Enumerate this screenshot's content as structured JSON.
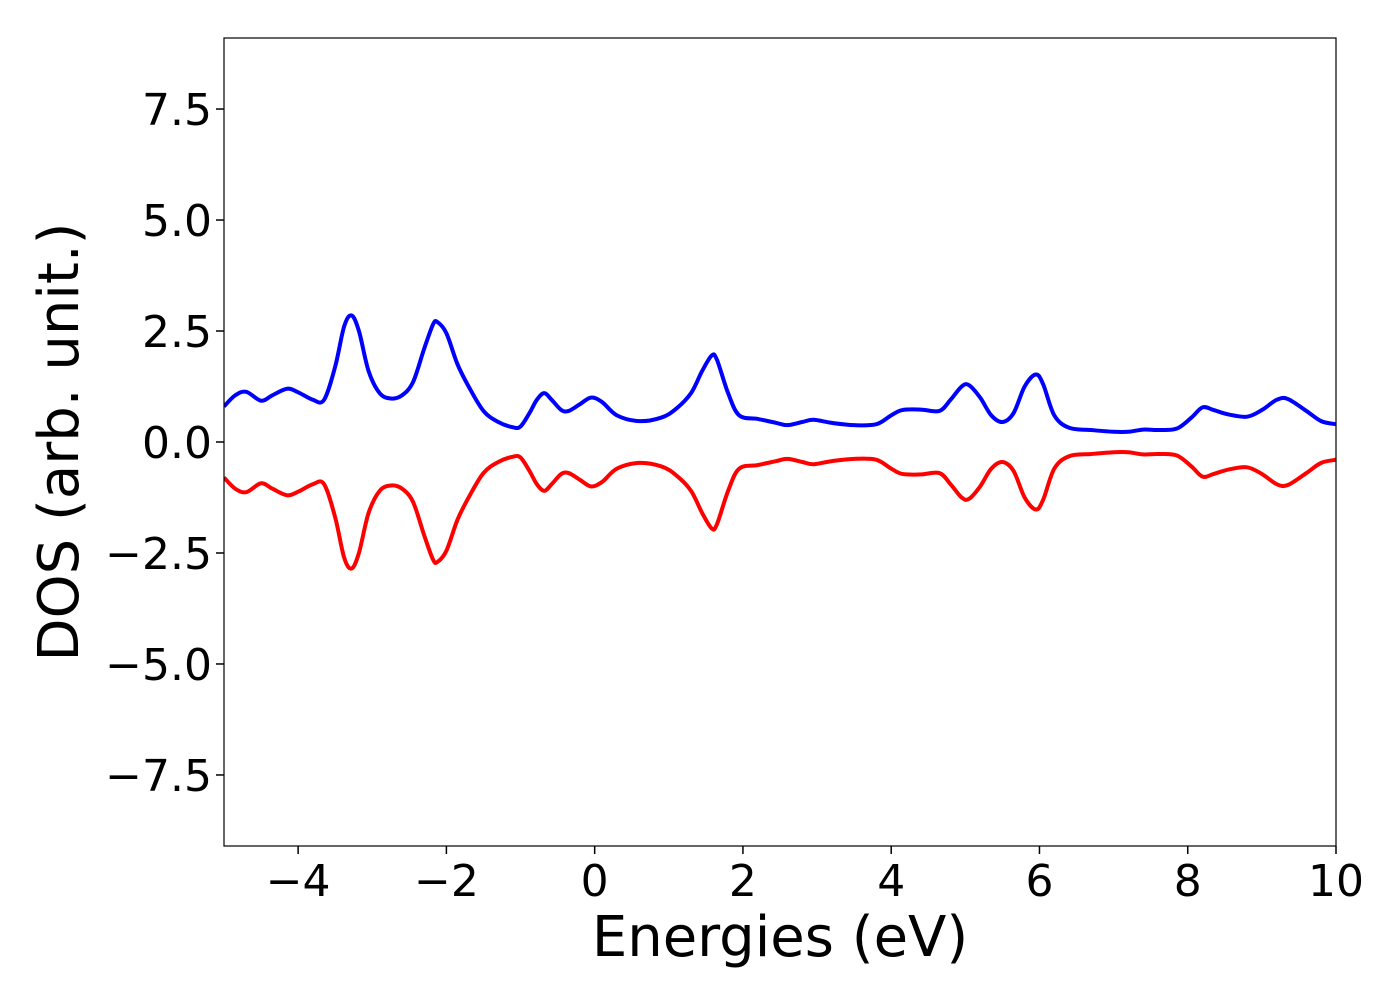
{
  "chart_data": {
    "type": "line",
    "title": "",
    "xlabel": "Energies (eV)",
    "ylabel": "DOS (arb. unit.)",
    "xlim": [
      -5,
      10
    ],
    "ylim": [
      -9.1,
      9.1
    ],
    "grid": false,
    "legend": "none",
    "x_ticks": [
      -4,
      -2,
      0,
      2,
      4,
      6,
      8,
      10
    ],
    "x_tick_labels": [
      "−4",
      "−2",
      "0",
      "2",
      "4",
      "6",
      "8",
      "10"
    ],
    "y_ticks": [
      7.5,
      5.0,
      2.5,
      0.0,
      -2.5,
      -5.0,
      -7.5
    ],
    "y_tick_labels": [
      "7.5",
      "5.0",
      "2.5",
      "0.0",
      "−2.5",
      "−5.0",
      "−7.5"
    ],
    "series": [
      {
        "color": "#0000ff",
        "points": [
          [
            -5.0,
            0.8
          ],
          [
            -4.85,
            1.05
          ],
          [
            -4.7,
            1.13
          ],
          [
            -4.5,
            0.93
          ],
          [
            -4.35,
            1.05
          ],
          [
            -4.15,
            1.2
          ],
          [
            -4.0,
            1.12
          ],
          [
            -3.8,
            0.95
          ],
          [
            -3.65,
            0.95
          ],
          [
            -3.5,
            1.7
          ],
          [
            -3.38,
            2.6
          ],
          [
            -3.28,
            2.85
          ],
          [
            -3.18,
            2.5
          ],
          [
            -3.05,
            1.6
          ],
          [
            -2.9,
            1.1
          ],
          [
            -2.75,
            0.98
          ],
          [
            -2.6,
            1.05
          ],
          [
            -2.45,
            1.35
          ],
          [
            -2.3,
            2.1
          ],
          [
            -2.18,
            2.65
          ],
          [
            -2.12,
            2.7
          ],
          [
            -2.0,
            2.45
          ],
          [
            -1.85,
            1.75
          ],
          [
            -1.7,
            1.25
          ],
          [
            -1.5,
            0.7
          ],
          [
            -1.3,
            0.45
          ],
          [
            -1.1,
            0.33
          ],
          [
            -1.0,
            0.35
          ],
          [
            -0.88,
            0.65
          ],
          [
            -0.78,
            0.95
          ],
          [
            -0.68,
            1.1
          ],
          [
            -0.58,
            0.95
          ],
          [
            -0.45,
            0.72
          ],
          [
            -0.35,
            0.7
          ],
          [
            -0.2,
            0.85
          ],
          [
            -0.05,
            1.0
          ],
          [
            0.1,
            0.9
          ],
          [
            0.3,
            0.6
          ],
          [
            0.6,
            0.47
          ],
          [
            0.9,
            0.55
          ],
          [
            1.1,
            0.75
          ],
          [
            1.3,
            1.1
          ],
          [
            1.45,
            1.6
          ],
          [
            1.58,
            1.95
          ],
          [
            1.65,
            1.85
          ],
          [
            1.8,
            1.1
          ],
          [
            1.95,
            0.6
          ],
          [
            2.2,
            0.52
          ],
          [
            2.45,
            0.43
          ],
          [
            2.6,
            0.38
          ],
          [
            2.8,
            0.45
          ],
          [
            2.95,
            0.5
          ],
          [
            3.2,
            0.43
          ],
          [
            3.5,
            0.38
          ],
          [
            3.8,
            0.4
          ],
          [
            4.0,
            0.6
          ],
          [
            4.15,
            0.72
          ],
          [
            4.4,
            0.73
          ],
          [
            4.65,
            0.7
          ],
          [
            4.8,
            0.95
          ],
          [
            4.95,
            1.25
          ],
          [
            5.05,
            1.28
          ],
          [
            5.2,
            1.0
          ],
          [
            5.35,
            0.6
          ],
          [
            5.5,
            0.45
          ],
          [
            5.65,
            0.65
          ],
          [
            5.8,
            1.25
          ],
          [
            5.95,
            1.52
          ],
          [
            6.05,
            1.3
          ],
          [
            6.2,
            0.6
          ],
          [
            6.4,
            0.32
          ],
          [
            6.7,
            0.27
          ],
          [
            7.0,
            0.23
          ],
          [
            7.2,
            0.23
          ],
          [
            7.4,
            0.28
          ],
          [
            7.6,
            0.27
          ],
          [
            7.85,
            0.3
          ],
          [
            8.05,
            0.55
          ],
          [
            8.2,
            0.78
          ],
          [
            8.35,
            0.72
          ],
          [
            8.55,
            0.62
          ],
          [
            8.8,
            0.57
          ],
          [
            9.0,
            0.72
          ],
          [
            9.2,
            0.95
          ],
          [
            9.35,
            0.97
          ],
          [
            9.6,
            0.7
          ],
          [
            9.8,
            0.47
          ],
          [
            10.0,
            0.4
          ]
        ]
      },
      {
        "color": "#ff0000",
        "points": [
          [
            -5.0,
            -0.8
          ],
          [
            -4.85,
            -1.05
          ],
          [
            -4.7,
            -1.13
          ],
          [
            -4.5,
            -0.93
          ],
          [
            -4.35,
            -1.05
          ],
          [
            -4.15,
            -1.2
          ],
          [
            -4.0,
            -1.12
          ],
          [
            -3.8,
            -0.95
          ],
          [
            -3.65,
            -0.95
          ],
          [
            -3.5,
            -1.7
          ],
          [
            -3.38,
            -2.6
          ],
          [
            -3.28,
            -2.85
          ],
          [
            -3.18,
            -2.5
          ],
          [
            -3.05,
            -1.6
          ],
          [
            -2.9,
            -1.1
          ],
          [
            -2.75,
            -0.98
          ],
          [
            -2.6,
            -1.05
          ],
          [
            -2.45,
            -1.35
          ],
          [
            -2.3,
            -2.1
          ],
          [
            -2.18,
            -2.65
          ],
          [
            -2.12,
            -2.7
          ],
          [
            -2.0,
            -2.45
          ],
          [
            -1.85,
            -1.75
          ],
          [
            -1.7,
            -1.25
          ],
          [
            -1.5,
            -0.7
          ],
          [
            -1.3,
            -0.45
          ],
          [
            -1.1,
            -0.33
          ],
          [
            -1.0,
            -0.35
          ],
          [
            -0.88,
            -0.65
          ],
          [
            -0.78,
            -0.95
          ],
          [
            -0.68,
            -1.1
          ],
          [
            -0.58,
            -0.95
          ],
          [
            -0.45,
            -0.72
          ],
          [
            -0.35,
            -0.7
          ],
          [
            -0.2,
            -0.85
          ],
          [
            -0.05,
            -1.0
          ],
          [
            0.1,
            -0.9
          ],
          [
            0.3,
            -0.6
          ],
          [
            0.6,
            -0.47
          ],
          [
            0.9,
            -0.55
          ],
          [
            1.1,
            -0.75
          ],
          [
            1.3,
            -1.1
          ],
          [
            1.45,
            -1.6
          ],
          [
            1.58,
            -1.95
          ],
          [
            1.65,
            -1.85
          ],
          [
            1.8,
            -1.1
          ],
          [
            1.95,
            -0.6
          ],
          [
            2.2,
            -0.52
          ],
          [
            2.45,
            -0.43
          ],
          [
            2.6,
            -0.38
          ],
          [
            2.8,
            -0.45
          ],
          [
            2.95,
            -0.5
          ],
          [
            3.2,
            -0.43
          ],
          [
            3.5,
            -0.38
          ],
          [
            3.8,
            -0.4
          ],
          [
            4.0,
            -0.6
          ],
          [
            4.15,
            -0.72
          ],
          [
            4.4,
            -0.73
          ],
          [
            4.65,
            -0.7
          ],
          [
            4.8,
            -0.95
          ],
          [
            4.95,
            -1.25
          ],
          [
            5.05,
            -1.28
          ],
          [
            5.2,
            -1.0
          ],
          [
            5.35,
            -0.6
          ],
          [
            5.5,
            -0.45
          ],
          [
            5.65,
            -0.65
          ],
          [
            5.8,
            -1.25
          ],
          [
            5.95,
            -1.52
          ],
          [
            6.05,
            -1.3
          ],
          [
            6.2,
            -0.6
          ],
          [
            6.4,
            -0.32
          ],
          [
            6.7,
            -0.27
          ],
          [
            7.0,
            -0.23
          ],
          [
            7.2,
            -0.23
          ],
          [
            7.4,
            -0.28
          ],
          [
            7.6,
            -0.27
          ],
          [
            7.85,
            -0.3
          ],
          [
            8.05,
            -0.55
          ],
          [
            8.2,
            -0.78
          ],
          [
            8.35,
            -0.72
          ],
          [
            8.55,
            -0.62
          ],
          [
            8.8,
            -0.57
          ],
          [
            9.0,
            -0.72
          ],
          [
            9.2,
            -0.95
          ],
          [
            9.35,
            -0.97
          ],
          [
            9.6,
            -0.7
          ],
          [
            9.8,
            -0.47
          ],
          [
            10.0,
            -0.4
          ]
        ]
      }
    ]
  }
}
